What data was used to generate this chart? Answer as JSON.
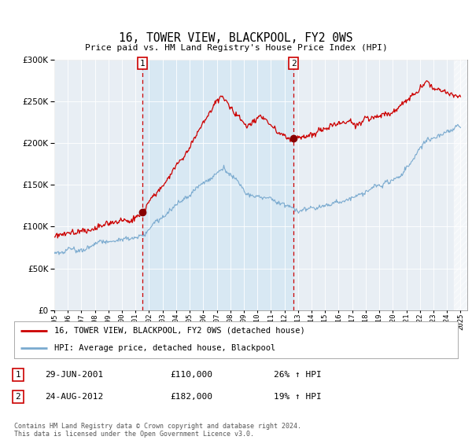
{
  "title": "16, TOWER VIEW, BLACKPOOL, FY2 0WS",
  "subtitle": "Price paid vs. HM Land Registry's House Price Index (HPI)",
  "legend_line1": "16, TOWER VIEW, BLACKPOOL, FY2 0WS (detached house)",
  "legend_line2": "HPI: Average price, detached house, Blackpool",
  "sale1_label": "1",
  "sale1_date": "29-JUN-2001",
  "sale1_price": "£110,000",
  "sale1_hpi": "26% ↑ HPI",
  "sale2_label": "2",
  "sale2_date": "24-AUG-2012",
  "sale2_price": "£182,000",
  "sale2_hpi": "19% ↑ HPI",
  "footer": "Contains HM Land Registry data © Crown copyright and database right 2024.\nThis data is licensed under the Open Government Licence v3.0.",
  "hpi_color": "#7aaacf",
  "price_color": "#cc0000",
  "vline_color": "#cc0000",
  "shade_color": "#d8e8f3",
  "bg_color": "#e8eef4",
  "plot_bg": "#ffffff",
  "ylim": [
    0,
    300000
  ],
  "yticks": [
    0,
    50000,
    100000,
    150000,
    200000,
    250000,
    300000
  ],
  "start_year": 1995,
  "end_year": 2025,
  "sale1_year": 2001.5,
  "sale2_year": 2012.67,
  "sale1_value": 110000,
  "sale2_value": 182000
}
